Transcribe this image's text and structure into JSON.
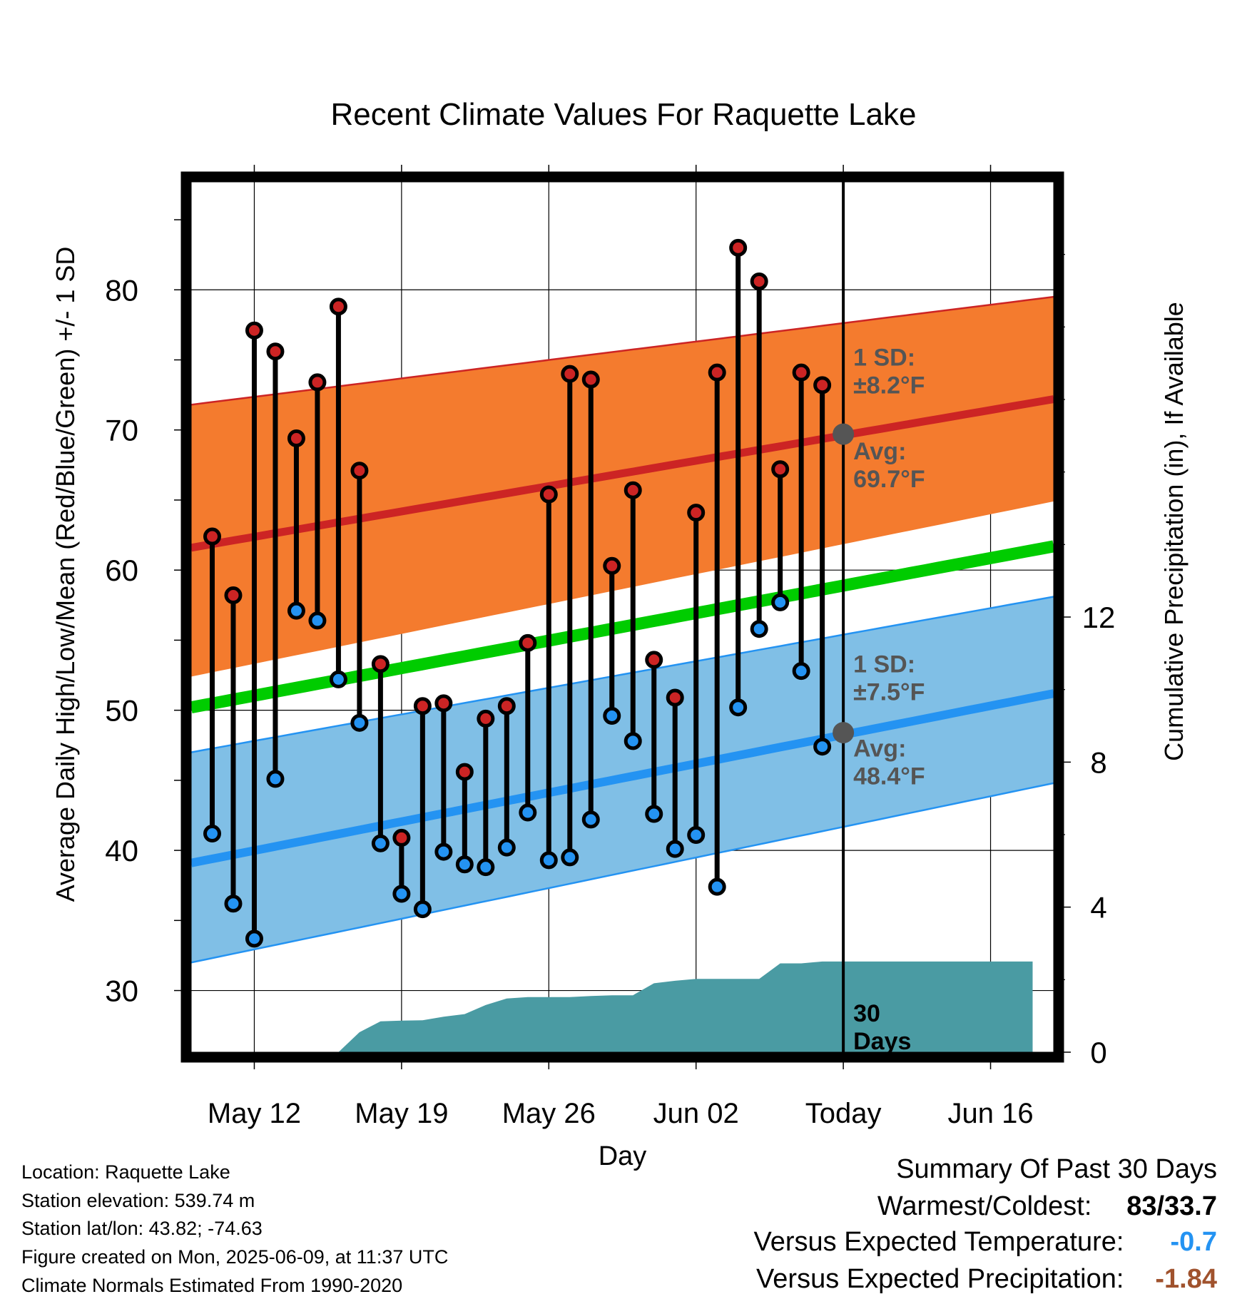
{
  "chart_data": {
    "type": "line",
    "title": "Recent Climate Values For Raquette Lake",
    "xlabel": "Day",
    "ylabel": "Average Daily High/Low/Mean (Red/Blue/Green) +/- 1 SD",
    "y2label": "Cumulative Precipitation (in), If Available",
    "ylim": [
      25.6,
      87.7
    ],
    "y2lim": [
      0,
      24
    ],
    "yticks": [
      30,
      40,
      50,
      60,
      70,
      80
    ],
    "y2ticks": [
      0,
      4,
      8,
      12
    ],
    "xlim": [
      0,
      41
    ],
    "xticks": [
      {
        "day": 3,
        "label": "May 12"
      },
      {
        "day": 10,
        "label": "May 19"
      },
      {
        "day": 17,
        "label": "May 26"
      },
      {
        "day": 24,
        "label": "Jun 02"
      },
      {
        "day": 31,
        "label": "Today"
      },
      {
        "day": 38,
        "label": "Jun 16"
      }
    ],
    "today_day": 31,
    "grid": true,
    "normals": {
      "high_avg": [
        61.6,
        72.2
      ],
      "high_upper": [
        71.8,
        79.5
      ],
      "high_lower": [
        52.4,
        64.9
      ],
      "mean_avg": [
        50.2,
        61.7
      ],
      "low_avg": [
        39.1,
        51.2
      ],
      "low_upper": [
        47.0,
        58.1
      ],
      "low_lower": [
        32.0,
        44.8
      ]
    },
    "series": [
      {
        "name": "Daily High",
        "color": "#cc2424",
        "x": [
          1,
          2,
          3,
          4,
          5,
          6,
          7,
          8,
          9,
          10,
          11,
          12,
          13,
          14,
          15,
          16,
          17,
          18,
          19,
          20,
          21,
          22,
          23,
          24,
          25,
          26,
          27,
          28,
          29,
          30
        ],
        "values": [
          62.4,
          58.2,
          77.1,
          75.6,
          69.4,
          73.4,
          78.8,
          67.1,
          53.3,
          40.9,
          50.3,
          50.5,
          45.6,
          49.4,
          50.3,
          54.8,
          65.4,
          74.0,
          73.6,
          60.3,
          65.7,
          53.6,
          50.9,
          64.1,
          74.1,
          83.0,
          80.6,
          67.2,
          74.1,
          73.2
        ]
      },
      {
        "name": "Daily Low",
        "color": "#2493f2",
        "x": [
          1,
          2,
          3,
          4,
          5,
          6,
          7,
          8,
          9,
          10,
          11,
          12,
          13,
          14,
          15,
          16,
          17,
          18,
          19,
          20,
          21,
          22,
          23,
          24,
          25,
          26,
          27,
          28,
          29,
          30
        ],
        "values": [
          41.2,
          36.2,
          33.7,
          45.1,
          57.1,
          56.4,
          52.2,
          49.1,
          40.5,
          36.9,
          35.8,
          39.9,
          39.0,
          38.8,
          40.2,
          42.7,
          39.3,
          39.5,
          42.2,
          49.6,
          47.8,
          42.6,
          40.1,
          41.1,
          37.4,
          50.2,
          55.8,
          57.7,
          52.8,
          47.4
        ]
      },
      {
        "name": "Cumulative Precipitation",
        "color": "#4a9ba3",
        "x": [
          7,
          8,
          9,
          10,
          11,
          12,
          13,
          14,
          15,
          16,
          17,
          18,
          19,
          20,
          21,
          22,
          23,
          24,
          25,
          26,
          27,
          28,
          29,
          30,
          31,
          32,
          33,
          34,
          35,
          36,
          37,
          38,
          39,
          40
        ],
        "values": [
          0,
          0.55,
          0.85,
          0.87,
          0.88,
          0.98,
          1.05,
          1.3,
          1.48,
          1.52,
          1.52,
          1.52,
          1.55,
          1.57,
          1.57,
          1.9,
          1.97,
          2.02,
          2.02,
          2.02,
          2.02,
          2.45,
          2.45,
          2.5,
          2.5,
          2.5,
          2.5,
          2.5,
          2.5,
          2.5,
          2.5,
          2.5,
          2.5,
          2.5
        ]
      }
    ],
    "annotations": [
      {
        "text1": "1 SD:",
        "text2": "±8.2°F",
        "x": 31,
        "y": 74.6
      },
      {
        "text1": "Avg:",
        "text2": "69.7°F",
        "x": 31,
        "y": 67.9
      },
      {
        "text1": "1 SD:",
        "text2": "±7.5°F",
        "x": 31,
        "y": 52.7
      },
      {
        "text1": "Avg:",
        "text2": "48.4°F",
        "x": 31,
        "y": 46.7
      },
      {
        "text1": "30",
        "text2": "Days",
        "x": 31,
        "y": 27.8
      }
    ],
    "today_markers": [
      69.7,
      48.4
    ]
  },
  "info": {
    "location": "Location: Raquette Lake",
    "elevation": "Station elevation: 539.74 m",
    "latlon": "Station lat/lon: 43.82; -74.63",
    "created": "Figure created on Mon, 2025-06-09, at 11:37 UTC",
    "normals": "Climate Normals Estimated From 1990-2020"
  },
  "summary": {
    "title": "Summary Of Past 30 Days",
    "warm_label": "Warmest/Coldest:",
    "warm_value": "83/33.7",
    "temp_label": "Versus Expected Temperature:",
    "temp_value": "-0.7",
    "temp_color": "#2493f2",
    "precip_label": "Versus Expected Precipitation:",
    "precip_value": "-1.84",
    "precip_color": "#a0522d"
  },
  "colors": {
    "high_band": "#f47b2e",
    "high_line": "#cc2424",
    "mean_line": "#00cc00",
    "low_band": "#80bfe6",
    "low_line": "#2493f2",
    "precip": "#4a9ba3",
    "marker": "#555555",
    "annotation": "#555555"
  }
}
